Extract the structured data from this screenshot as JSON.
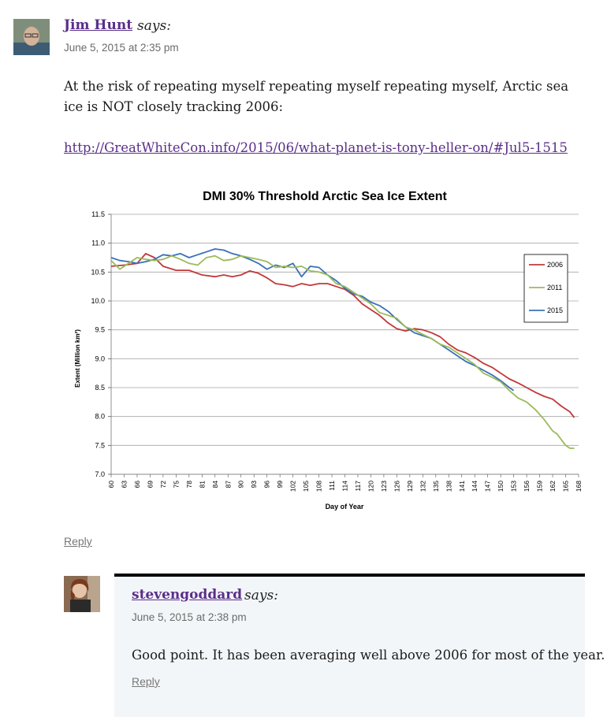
{
  "comment1": {
    "author": "Jim Hunt",
    "says": "says:",
    "date": "June 5, 2015 at 2:35 pm",
    "text": "At the risk of repeating myself repeating myself repeating myself, Arctic sea ice is NOT closely tracking 2006:",
    "link": "http://GreatWhiteCon.info/2015/06/what-planet-is-tony-heller-on/#Jul5-1515",
    "reply_label": "Reply"
  },
  "comment2": {
    "author": "stevengoddard",
    "says": "says:",
    "date": "June 5, 2015 at 2:38 pm",
    "text": "Good point. It has been averaging well above 2006 for most of the year.",
    "reply_label": "Reply"
  },
  "colors": {
    "link": "#5a2e8a",
    "s2006": "#c0393b",
    "s2011": "#9bbb59",
    "s2015": "#3a70b8"
  },
  "chart_data": {
    "type": "line",
    "title": "DMI 30% Threshold Arctic Sea Ice Extent",
    "xlabel": "Day of Year",
    "ylabel": "Extent (Million km²)",
    "xlim": [
      60,
      168
    ],
    "ylim": [
      7.0,
      11.5
    ],
    "x_ticks": [
      60,
      63,
      66,
      69,
      72,
      75,
      78,
      81,
      84,
      87,
      90,
      93,
      96,
      99,
      102,
      105,
      108,
      111,
      114,
      117,
      120,
      123,
      126,
      129,
      132,
      135,
      138,
      141,
      144,
      147,
      150,
      153,
      156,
      159,
      162,
      165,
      168
    ],
    "y_ticks": [
      "7.0",
      "7.5",
      "8.0",
      "8.5",
      "9.0",
      "9.5",
      "10.0",
      "10.5",
      "11.0",
      "11.5"
    ],
    "legend_position": "right",
    "series": [
      {
        "name": "2006",
        "points": [
          [
            60,
            10.6
          ],
          [
            63,
            10.62
          ],
          [
            66,
            10.65
          ],
          [
            68,
            10.82
          ],
          [
            70,
            10.75
          ],
          [
            72,
            10.6
          ],
          [
            75,
            10.53
          ],
          [
            78,
            10.53
          ],
          [
            81,
            10.45
          ],
          [
            84,
            10.42
          ],
          [
            86,
            10.45
          ],
          [
            88,
            10.42
          ],
          [
            90,
            10.45
          ],
          [
            92,
            10.52
          ],
          [
            94,
            10.48
          ],
          [
            96,
            10.4
          ],
          [
            98,
            10.3
          ],
          [
            100,
            10.28
          ],
          [
            102,
            10.25
          ],
          [
            104,
            10.3
          ],
          [
            106,
            10.27
          ],
          [
            108,
            10.3
          ],
          [
            110,
            10.3
          ],
          [
            112,
            10.25
          ],
          [
            114,
            10.2
          ],
          [
            116,
            10.1
          ],
          [
            118,
            9.95
          ],
          [
            120,
            9.85
          ],
          [
            122,
            9.75
          ],
          [
            124,
            9.62
          ],
          [
            126,
            9.52
          ],
          [
            128,
            9.48
          ],
          [
            130,
            9.52
          ],
          [
            132,
            9.5
          ],
          [
            134,
            9.45
          ],
          [
            136,
            9.38
          ],
          [
            138,
            9.25
          ],
          [
            140,
            9.15
          ],
          [
            142,
            9.1
          ],
          [
            144,
            9.02
          ],
          [
            146,
            8.92
          ],
          [
            148,
            8.85
          ],
          [
            150,
            8.75
          ],
          [
            152,
            8.65
          ],
          [
            154,
            8.58
          ],
          [
            156,
            8.5
          ],
          [
            158,
            8.42
          ],
          [
            160,
            8.35
          ],
          [
            162,
            8.3
          ],
          [
            164,
            8.18
          ],
          [
            166,
            8.08
          ],
          [
            167,
            7.98
          ]
        ]
      },
      {
        "name": "2011",
        "points": [
          [
            60,
            10.7
          ],
          [
            62,
            10.55
          ],
          [
            64,
            10.65
          ],
          [
            66,
            10.75
          ],
          [
            68,
            10.72
          ],
          [
            70,
            10.7
          ],
          [
            72,
            10.72
          ],
          [
            74,
            10.78
          ],
          [
            76,
            10.72
          ],
          [
            78,
            10.65
          ],
          [
            80,
            10.62
          ],
          [
            82,
            10.75
          ],
          [
            84,
            10.78
          ],
          [
            86,
            10.7
          ],
          [
            88,
            10.72
          ],
          [
            90,
            10.78
          ],
          [
            92,
            10.75
          ],
          [
            94,
            10.72
          ],
          [
            96,
            10.68
          ],
          [
            98,
            10.58
          ],
          [
            100,
            10.6
          ],
          [
            102,
            10.58
          ],
          [
            104,
            10.6
          ],
          [
            106,
            10.52
          ],
          [
            108,
            10.5
          ],
          [
            110,
            10.45
          ],
          [
            112,
            10.3
          ],
          [
            114,
            10.25
          ],
          [
            116,
            10.15
          ],
          [
            118,
            10.05
          ],
          [
            120,
            9.95
          ],
          [
            122,
            9.8
          ],
          [
            124,
            9.75
          ],
          [
            126,
            9.7
          ],
          [
            128,
            9.55
          ],
          [
            130,
            9.5
          ],
          [
            132,
            9.42
          ],
          [
            134,
            9.35
          ],
          [
            136,
            9.25
          ],
          [
            138,
            9.2
          ],
          [
            140,
            9.1
          ],
          [
            142,
            9.0
          ],
          [
            144,
            8.9
          ],
          [
            146,
            8.75
          ],
          [
            148,
            8.68
          ],
          [
            150,
            8.6
          ],
          [
            152,
            8.45
          ],
          [
            154,
            8.32
          ],
          [
            156,
            8.25
          ],
          [
            158,
            8.12
          ],
          [
            160,
            7.95
          ],
          [
            162,
            7.75
          ],
          [
            163,
            7.7
          ],
          [
            165,
            7.5
          ],
          [
            166,
            7.45
          ],
          [
            167,
            7.45
          ]
        ]
      },
      {
        "name": "2015",
        "points": [
          [
            60,
            10.75
          ],
          [
            62,
            10.7
          ],
          [
            64,
            10.68
          ],
          [
            66,
            10.65
          ],
          [
            68,
            10.68
          ],
          [
            70,
            10.72
          ],
          [
            72,
            10.8
          ],
          [
            74,
            10.78
          ],
          [
            76,
            10.82
          ],
          [
            78,
            10.75
          ],
          [
            80,
            10.8
          ],
          [
            82,
            10.85
          ],
          [
            84,
            10.9
          ],
          [
            86,
            10.88
          ],
          [
            88,
            10.82
          ],
          [
            90,
            10.78
          ],
          [
            92,
            10.72
          ],
          [
            94,
            10.65
          ],
          [
            96,
            10.55
          ],
          [
            98,
            10.62
          ],
          [
            100,
            10.58
          ],
          [
            102,
            10.65
          ],
          [
            104,
            10.42
          ],
          [
            106,
            10.6
          ],
          [
            108,
            10.58
          ],
          [
            110,
            10.45
          ],
          [
            112,
            10.35
          ],
          [
            114,
            10.22
          ],
          [
            116,
            10.12
          ],
          [
            118,
            10.08
          ],
          [
            120,
            9.98
          ],
          [
            122,
            9.92
          ],
          [
            124,
            9.82
          ],
          [
            126,
            9.68
          ],
          [
            128,
            9.55
          ],
          [
            130,
            9.45
          ],
          [
            132,
            9.4
          ],
          [
            134,
            9.35
          ],
          [
            136,
            9.25
          ],
          [
            138,
            9.15
          ],
          [
            140,
            9.05
          ],
          [
            142,
            8.95
          ],
          [
            144,
            8.88
          ],
          [
            146,
            8.8
          ],
          [
            148,
            8.72
          ],
          [
            150,
            8.62
          ],
          [
            152,
            8.5
          ],
          [
            153,
            8.45
          ]
        ]
      }
    ]
  }
}
